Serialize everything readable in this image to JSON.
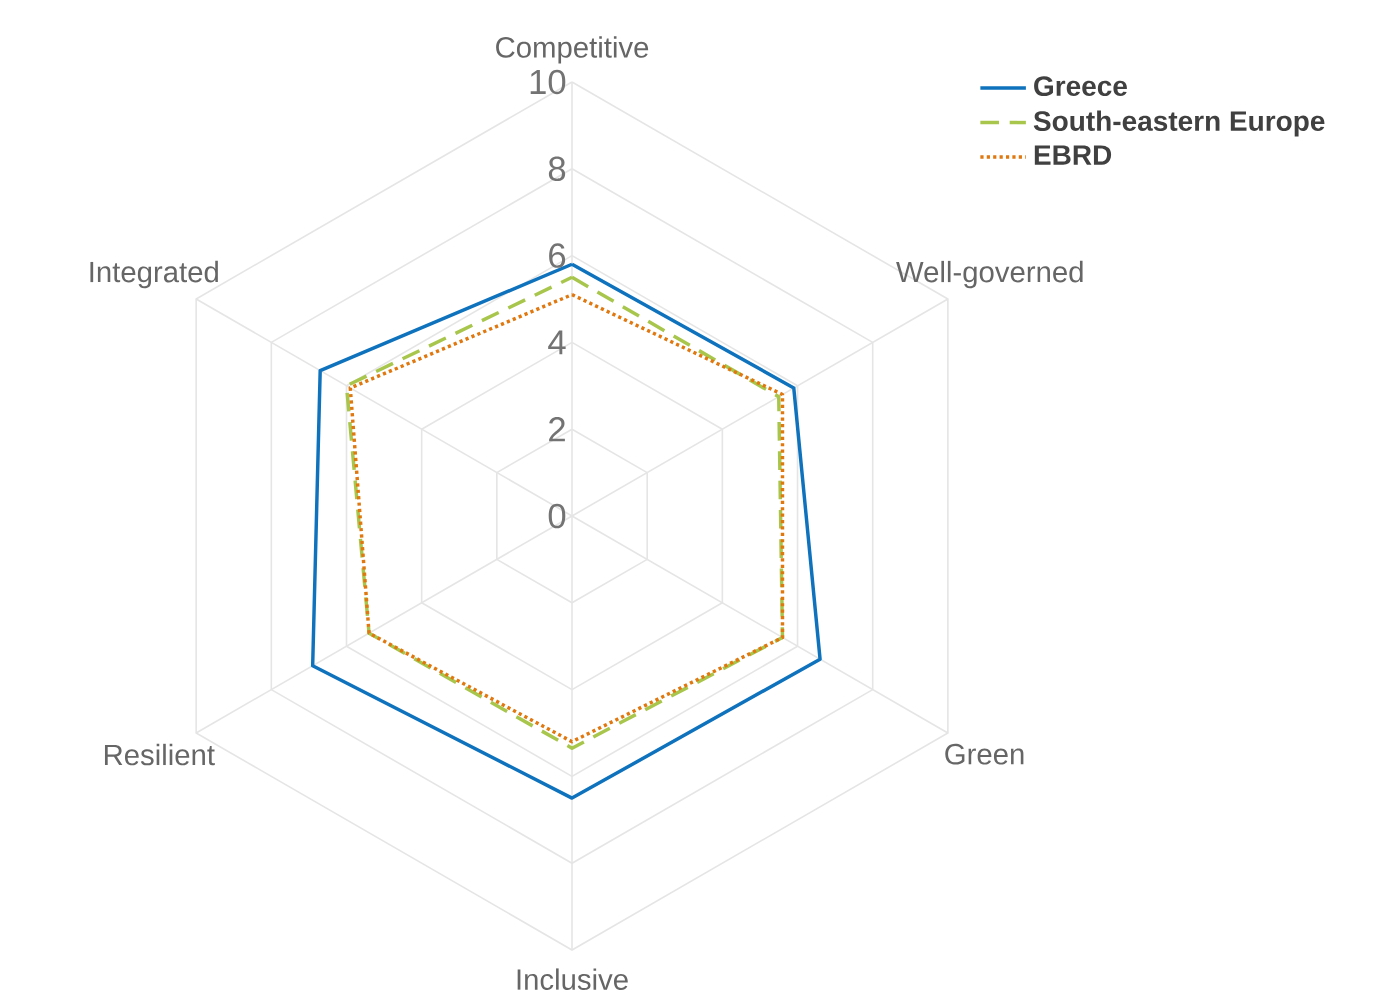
{
  "chart_data": {
    "type": "radar",
    "categories": [
      "Competitive",
      "Well-governed",
      "Green",
      "Inclusive",
      "Resilient",
      "Integrated"
    ],
    "ylim": [
      0,
      10
    ],
    "yticks": [
      0,
      2,
      4,
      6,
      8,
      10
    ],
    "grid": true,
    "legend": "top right",
    "series": [
      {
        "name": "Greece",
        "color": "#0f72bd",
        "line_style": "solid",
        "values": [
          5.8,
          5.9,
          6.6,
          6.5,
          6.9,
          6.7
        ]
      },
      {
        "name": "South-eastern Europe",
        "color": "#a8c64c",
        "line_style": "dashed",
        "values": [
          5.5,
          5.5,
          5.6,
          5.35,
          5.4,
          6.0
        ]
      },
      {
        "name": "EBRD",
        "color": "#e0780f",
        "line_style": "dotted",
        "values": [
          5.1,
          5.6,
          5.6,
          5.2,
          5.4,
          5.9
        ]
      }
    ]
  }
}
